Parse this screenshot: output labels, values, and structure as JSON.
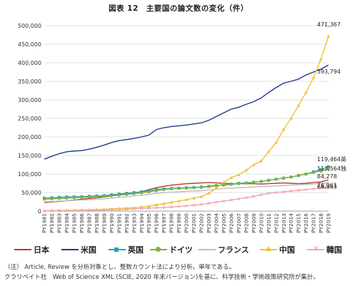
{
  "title": "図表 12　主要国の論文数の変化（件）",
  "notes": [
    "（注） Article, Review を分析対象とし、整数カウント法により分析。単年である。",
    "クラリベイト社　Web of Science XML (SCIE, 2020 年末バージョン)を基に、科学技術・学術政策研究所が集計。"
  ],
  "chart_data": {
    "type": "line",
    "title": "図表 12　主要国の論文数の変化（件）",
    "xlabel": "",
    "ylabel": "",
    "ylim": [
      0,
      500000
    ],
    "yticks": [
      0,
      50000,
      100000,
      150000,
      200000,
      250000,
      300000,
      350000,
      400000,
      450000,
      500000
    ],
    "ytick_labels": [
      "0",
      "50,000",
      "100,000",
      "150,000",
      "200,000",
      "250,000",
      "300,000",
      "350,000",
      "400,000",
      "450,000",
      "500,000"
    ],
    "grid": true,
    "legend_position": "bottom",
    "categories": [
      "PY1981",
      "PY1982",
      "PY1983",
      "PY1984",
      "PY1985",
      "PY1986",
      "PY1987",
      "PY1988",
      "PY1989",
      "PY1990",
      "PY1991",
      "PY1992",
      "PY1993",
      "PY1994",
      "PY1995",
      "PY1996",
      "PY1997",
      "PY1998",
      "PY1999",
      "PY2000",
      "PY2001",
      "PY2002",
      "PY2003",
      "PY2004",
      "PY2005",
      "PY2006",
      "PY2007",
      "PY2008",
      "PY2009",
      "PY2010",
      "PY2011",
      "PY2012",
      "PY2013",
      "PY2014",
      "PY2015",
      "PY2016",
      "PY2017",
      "PY2018",
      "PY2019"
    ],
    "series": [
      {
        "name": "日本",
        "color": "#c0392b",
        "marker": "none",
        "values": [
          23000,
          25000,
          26000,
          28000,
          30000,
          32000,
          34000,
          36000,
          38000,
          41000,
          45000,
          47000,
          49000,
          52000,
          58000,
          63000,
          67000,
          70000,
          72000,
          74000,
          75000,
          76000,
          77000,
          76000,
          75000,
          74000,
          74000,
          74000,
          74000,
          73000,
          74000,
          75000,
          76000,
          75000,
          74000,
          75000,
          77000,
          79000,
          84278
        ]
      },
      {
        "name": "米国",
        "color": "#1f3a8a",
        "marker": "none",
        "values": [
          140000,
          148000,
          155000,
          160000,
          162000,
          163000,
          167000,
          172000,
          178000,
          185000,
          190000,
          193000,
          196000,
          200000,
          205000,
          220000,
          225000,
          228000,
          230000,
          232000,
          235000,
          238000,
          245000,
          255000,
          265000,
          275000,
          280000,
          288000,
          295000,
          305000,
          320000,
          333000,
          345000,
          350000,
          356000,
          367000,
          375000,
          383000,
          393794
        ]
      },
      {
        "name": "英国",
        "color": "#2aa3b5",
        "marker": "square",
        "values": [
          35000,
          36000,
          37000,
          38000,
          38500,
          39000,
          40000,
          41000,
          42000,
          44000,
          46000,
          48000,
          50000,
          52000,
          55000,
          58000,
          60000,
          61000,
          62000,
          63000,
          64000,
          65000,
          67000,
          69000,
          71000,
          73000,
          75000,
          76000,
          78000,
          80000,
          83000,
          86000,
          89000,
          92000,
          96000,
          100000,
          106000,
          112000,
          119464
        ]
      },
      {
        "name": "ドイツ",
        "color": "#7cb342",
        "marker": "circle",
        "values": [
          32000,
          33000,
          34000,
          35000,
          36000,
          37000,
          38000,
          39000,
          40000,
          41000,
          43000,
          45000,
          47000,
          49000,
          52000,
          55000,
          58000,
          60000,
          61000,
          62000,
          63000,
          64000,
          66000,
          68000,
          70000,
          72000,
          74000,
          76000,
          78000,
          80000,
          83000,
          86000,
          89000,
          92000,
          96000,
          100000,
          104000,
          108000,
          113564
        ]
      },
      {
        "name": "フランス",
        "color": "#bdbdbd",
        "marker": "none",
        "values": [
          25000,
          26000,
          27000,
          28000,
          29000,
          30000,
          31000,
          32000,
          33000,
          35000,
          37000,
          39000,
          41000,
          43000,
          45000,
          48000,
          50000,
          51000,
          52000,
          53000,
          54000,
          55000,
          57000,
          59000,
          61000,
          62000,
          63000,
          64000,
          65000,
          66000,
          67000,
          68000,
          69000,
          70000,
          71000,
          72000,
          73000,
          75000,
          76061
        ]
      },
      {
        "name": "中国",
        "color": "#f2c12e",
        "marker": "triangle",
        "values": [
          500,
          1000,
          1500,
          2000,
          2500,
          3000,
          3500,
          4000,
          5000,
          6000,
          7000,
          8000,
          9000,
          11000,
          13000,
          17000,
          20000,
          24000,
          27000,
          31000,
          35000,
          39000,
          48000,
          62000,
          78000,
          90000,
          98000,
          110000,
          125000,
          135000,
          160000,
          185000,
          220000,
          250000,
          285000,
          320000,
          360000,
          410000,
          471367
        ]
      },
      {
        "name": "韓国",
        "color": "#f1a7ad",
        "marker": "x",
        "values": [
          500,
          700,
          900,
          1100,
          1300,
          1600,
          2000,
          2500,
          3000,
          3500,
          4000,
          5000,
          6000,
          7000,
          8000,
          9000,
          10000,
          11000,
          12500,
          14000,
          16000,
          18000,
          21000,
          24000,
          27000,
          30000,
          33000,
          36000,
          40000,
          44000,
          48000,
          50000,
          52000,
          54000,
          56000,
          58000,
          60000,
          62000,
          64363
        ]
      }
    ],
    "end_labels": [
      {
        "series": "中国",
        "text": "471,367"
      },
      {
        "series": "米国",
        "text": "393,794"
      },
      {
        "series": "英国",
        "text": "119,464英"
      },
      {
        "series": "ドイツ",
        "text": "113,564独"
      },
      {
        "series": "日本",
        "text": "84,278"
      },
      {
        "series": "フランス",
        "text": "76,061"
      },
      {
        "series": "韓国",
        "text": "64,363"
      }
    ]
  }
}
